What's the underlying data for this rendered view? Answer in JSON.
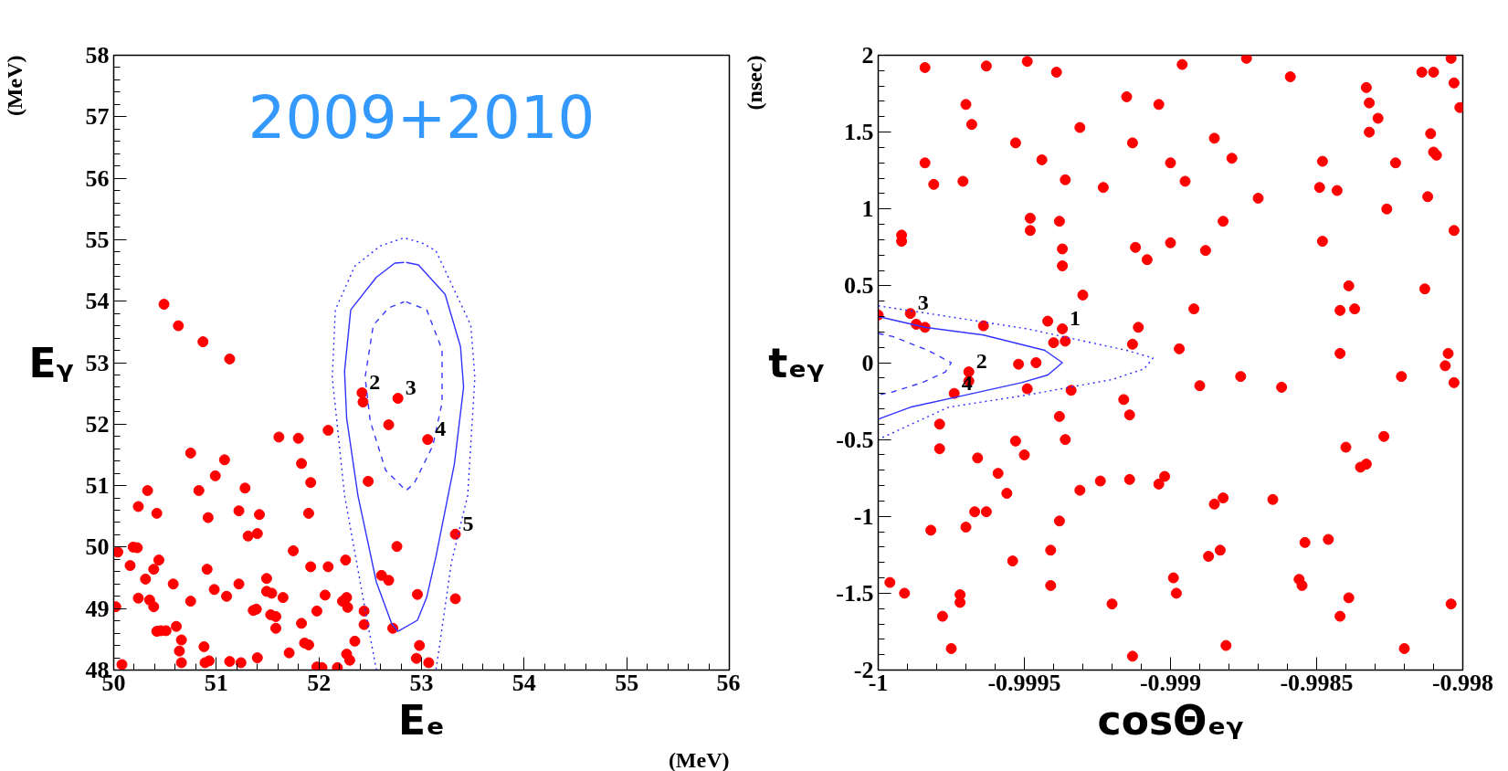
{
  "chart_data": [
    {
      "type": "scatter",
      "title": "2009+2010",
      "xlabel": "Eₑ",
      "ylabel": "Eᵧ",
      "xlim": [
        50,
        56
      ],
      "ylim": [
        48,
        58
      ],
      "xticks": [
        50,
        51,
        52,
        53,
        54,
        55,
        56
      ],
      "yticks": [
        48,
        49,
        50,
        51,
        52,
        53,
        54,
        55,
        56,
        57,
        58
      ],
      "annotations": [
        "(MeV)",
        "(MeV)",
        {
          "text": "2",
          "x": 52.42,
          "y": 52.51
        },
        {
          "text": "3",
          "x": 52.77,
          "y": 52.42
        },
        {
          "text": "4",
          "x": 53.06,
          "y": 51.75
        },
        {
          "text": "5",
          "x": 53.33,
          "y": 50.21
        }
      ],
      "series": [
        {
          "marker": "circle",
          "color": "#ff0000",
          "x": [
            50.49,
            50.63,
            50.87,
            51.13,
            50.75,
            51.08,
            50.99,
            50.83,
            50.33,
            50.24,
            50.42,
            50.92,
            51.28,
            51.22,
            51.42,
            51.31,
            51.4,
            51.61,
            51.8,
            51.83,
            51.92,
            51.9,
            52.09,
            51.75,
            51.92,
            52.09,
            52.26,
            50.04,
            50.19,
            50.23,
            50.16,
            50.31,
            50.39,
            50.44,
            50.24,
            50.35,
            50.39,
            50.02,
            50.58,
            50.75,
            50.91,
            50.98,
            51.1,
            51.22,
            51.49,
            51.49,
            51.54,
            51.65,
            51.36,
            51.39,
            51.53,
            51.58,
            51.58,
            51.83,
            51.98,
            52.06,
            52.23,
            52.27,
            52.28,
            52.44,
            52.44,
            52.35,
            52.27,
            52.3,
            52.18,
            52.03,
            51.98,
            51.86,
            51.9,
            51.71,
            51.4,
            51.24,
            51.13,
            50.93,
            50.89,
            50.88,
            50.66,
            50.64,
            50.66,
            50.61,
            50.42,
            50.46,
            50.51,
            50.08,
            52.42,
            52.43,
            52.77,
            52.68,
            53.06,
            52.48,
            52.76,
            53.33,
            53.33,
            52.96,
            52.61,
            52.68,
            52.72,
            52.98,
            52.95,
            53.07
          ],
          "values": [
            53.95,
            53.6,
            53.34,
            53.06,
            51.53,
            51.42,
            51.16,
            50.92,
            50.92,
            50.66,
            50.55,
            50.48,
            50.96,
            50.59,
            50.53,
            50.18,
            50.22,
            51.79,
            51.77,
            51.36,
            51.05,
            50.55,
            51.9,
            49.94,
            49.68,
            49.68,
            49.79,
            49.92,
            50.0,
            49.99,
            49.7,
            49.48,
            49.64,
            49.79,
            49.17,
            49.14,
            49.03,
            49.03,
            49.4,
            49.12,
            49.64,
            49.31,
            49.2,
            49.4,
            49.49,
            49.28,
            49.25,
            49.18,
            48.97,
            48.99,
            48.9,
            48.87,
            48.68,
            48.76,
            48.96,
            49.22,
            49.12,
            49.18,
            49.02,
            48.96,
            48.74,
            48.47,
            48.26,
            48.16,
            48.04,
            48.04,
            48.05,
            48.44,
            48.41,
            48.28,
            48.2,
            48.12,
            48.14,
            48.15,
            48.12,
            48.38,
            48.49,
            48.31,
            48.12,
            48.71,
            48.63,
            48.64,
            48.64,
            48.09,
            52.51,
            52.36,
            52.42,
            51.99,
            51.75,
            51.07,
            50.01,
            50.21,
            49.16,
            49.23,
            49.54,
            49.46,
            48.68,
            48.4,
            48.19,
            48.12
          ]
        },
        {
          "type": "line",
          "color": "#3333ff",
          "line_style": "solid",
          "x": [
            52.85,
            52.97,
            53.23,
            53.38,
            53.41,
            53.32,
            53.14,
            53.05,
            52.96,
            52.77,
            52.71,
            52.56,
            52.38,
            52.27,
            52.25,
            52.31,
            52.56,
            52.74,
            52.83
          ],
          "values": [
            54.63,
            54.59,
            54.11,
            53.26,
            52.6,
            51.35,
            49.84,
            49.18,
            48.81,
            48.63,
            48.75,
            49.43,
            50.84,
            52.1,
            52.86,
            53.86,
            54.39,
            54.62,
            54.63
          ]
        },
        {
          "type": "line",
          "color": "#3838ff",
          "line_style": "dashed",
          "x": [
            52.85,
            53.05,
            53.2,
            53.2,
            53.11,
            52.93,
            52.85,
            52.65,
            52.5,
            52.45,
            52.53,
            52.68,
            52.83
          ],
          "values": [
            53.99,
            53.86,
            53.21,
            52.35,
            51.65,
            51.04,
            50.92,
            51.25,
            52.05,
            52.76,
            53.61,
            53.89,
            53.99
          ]
        },
        {
          "type": "line",
          "color": "#2e2eff",
          "line_style": "dotted",
          "x": [
            52.56,
            52.44,
            52.25,
            52.13,
            52.16,
            52.35,
            52.6,
            52.83,
            53.0,
            53.14,
            53.48,
            53.52,
            53.45,
            53.29,
            53.17,
            53.14
          ],
          "values": [
            48.0,
            49.08,
            50.84,
            52.76,
            53.86,
            54.57,
            54.9,
            55.03,
            54.95,
            54.82,
            53.61,
            52.76,
            50.84,
            49.74,
            48.33,
            48.0
          ]
        }
      ]
    },
    {
      "type": "scatter",
      "xlabel": "cosΘₑᵧ",
      "ylabel": "tₑᵧ",
      "xlim": [
        -1,
        -0.998
      ],
      "ylim": [
        -2,
        2
      ],
      "xticks": [
        -1,
        -0.9995,
        -0.999,
        -0.9985,
        -0.998
      ],
      "yticks": [
        -2,
        -1.5,
        -1,
        -0.5,
        0,
        0.5,
        1,
        1.5,
        2
      ],
      "annotations": [
        "(nsec)",
        {
          "text": "1",
          "x": -0.99937,
          "y": 0.22
        },
        {
          "text": "2",
          "x": -0.99969,
          "y": -0.06
        },
        {
          "text": "3",
          "x": -0.99989,
          "y": 0.32
        },
        {
          "text": "4",
          "x": -0.99974,
          "y": -0.2
        }
      ],
      "series": [
        {
          "marker": "circle",
          "color": "#ff0000",
          "x": [
            -0.99984,
            -0.99963,
            -0.99949,
            -0.99939,
            -0.9997,
            -0.99968,
            -0.99953,
            -0.99944,
            -0.99931,
            -0.99936,
            -0.99923,
            -0.99984,
            -0.99981,
            -0.99971,
            -0.99992,
            -0.99992,
            -0.99948,
            -0.99948,
            -0.99938,
            -0.99937,
            -0.99937,
            -0.9993,
            -1.0,
            -0.99989,
            -0.99987,
            -0.99984,
            -0.99964,
            -0.99942,
            -0.99937,
            -0.9994,
            -0.99936,
            -0.99952,
            -0.99946,
            -0.99969,
            -0.99969,
            -0.99974,
            -0.99949,
            -0.99934,
            -0.99938,
            -0.99936,
            -0.99979,
            -0.99979,
            -0.99966,
            -0.99953,
            -0.9995,
            -0.99959,
            -0.99956,
            -0.99931,
            -0.99924,
            -0.99967,
            -0.99963,
            -0.9997,
            -0.99982,
            -0.99938,
            -0.99941,
            -0.99954,
            -0.99941,
            -0.99996,
            -0.99991,
            -0.99972,
            -0.99972,
            -0.99978,
            -0.99975,
            -0.9992,
            -0.99915,
            -0.99896,
            -0.99874,
            -0.99859,
            -0.99904,
            -0.99913,
            -0.99885,
            -0.999,
            -0.99879,
            -0.99895,
            -0.9987,
            -0.99882,
            -0.99912,
            -0.99908,
            -0.999,
            -0.99888,
            -0.99892,
            -0.99911,
            -0.99913,
            -0.99897,
            -0.9989,
            -0.99876,
            -0.99862,
            -0.99916,
            -0.99914,
            -0.99914,
            -0.99904,
            -0.99902,
            -0.99885,
            -0.99882,
            -0.99865,
            -0.99854,
            -0.99846,
            -0.99887,
            -0.99883,
            -0.99899,
            -0.99898,
            -0.99856,
            -0.99855,
            -0.99839,
            -0.99842,
            -0.99881,
            -0.99913,
            -0.9982,
            -0.99804,
            -0.99833,
            -0.99832,
            -0.99829,
            -0.99832,
            -0.99848,
            -0.99849,
            -0.99843,
            -0.99823,
            -0.99826,
            -0.99812,
            -0.99814,
            -0.9981,
            -0.99804,
            -0.99803,
            -0.99801,
            -0.99811,
            -0.9981,
            -0.99809,
            -0.99803,
            -0.99848,
            -0.99839,
            -0.99842,
            -0.99837,
            -0.99813,
            -0.99842,
            -0.99821,
            -0.99805,
            -0.99806,
            -0.99803,
            -0.99827,
            -0.9984,
            -0.99835,
            -0.99833
          ],
          "values": [
            1.92,
            1.93,
            1.96,
            1.89,
            1.68,
            1.55,
            1.43,
            1.32,
            1.53,
            1.19,
            1.14,
            1.3,
            1.16,
            1.18,
            0.83,
            0.79,
            0.94,
            0.86,
            0.92,
            0.74,
            0.63,
            0.44,
            0.31,
            0.32,
            0.25,
            0.23,
            0.24,
            0.27,
            0.22,
            0.13,
            0.14,
            -0.01,
            0.0,
            -0.06,
            -0.12,
            -0.2,
            -0.17,
            -0.18,
            -0.35,
            -0.5,
            -0.4,
            -0.56,
            -0.62,
            -0.51,
            -0.6,
            -0.72,
            -0.85,
            -0.83,
            -0.77,
            -0.97,
            -0.97,
            -1.07,
            -1.09,
            -1.03,
            -1.22,
            -1.29,
            -1.45,
            -1.43,
            -1.5,
            -1.51,
            -1.56,
            -1.65,
            -1.86,
            -1.57,
            1.73,
            1.94,
            1.98,
            1.86,
            1.68,
            1.43,
            1.46,
            1.3,
            1.33,
            1.18,
            1.07,
            0.92,
            0.75,
            0.67,
            0.78,
            0.73,
            0.35,
            0.23,
            0.12,
            0.09,
            -0.15,
            -0.09,
            -0.16,
            -0.24,
            -0.34,
            -0.76,
            -0.79,
            -0.74,
            -0.92,
            -0.88,
            -0.89,
            -1.17,
            -1.15,
            -1.26,
            -1.22,
            -1.4,
            -1.5,
            -1.41,
            -1.45,
            -1.53,
            -1.65,
            -1.84,
            -1.91,
            -1.86,
            -1.57,
            1.79,
            1.69,
            1.59,
            1.5,
            1.31,
            1.14,
            1.12,
            1.3,
            1.0,
            1.08,
            1.89,
            1.89,
            1.98,
            1.82,
            1.66,
            1.49,
            1.37,
            1.35,
            0.86,
            0.79,
            0.5,
            0.34,
            0.35,
            0.48,
            0.06,
            -0.09,
            0.06,
            -0.02,
            -0.13,
            -0.48,
            -0.55,
            -0.68,
            -0.66
          ]
        },
        {
          "type": "line",
          "color": "#3333ff",
          "line_style": "solid",
          "x": [
            -1.0,
            -0.99984,
            -0.99964,
            -0.99943,
            -0.99937,
            -0.99942,
            -0.99951,
            -0.9997,
            -0.99989,
            -0.99999,
            -1.0
          ],
          "values": [
            0.3,
            0.23,
            0.18,
            0.08,
            0.0,
            -0.08,
            -0.13,
            -0.21,
            -0.29,
            -0.36,
            -0.37
          ]
        },
        {
          "type": "line",
          "color": "#3838ff",
          "line_style": "dashed",
          "x": [
            -1.0,
            -0.99995,
            -0.99983,
            -0.99975,
            -0.99977,
            -0.99985,
            -0.99995,
            -1.0
          ],
          "values": [
            0.19,
            0.17,
            0.08,
            0.0,
            -0.06,
            -0.13,
            -0.19,
            -0.21
          ]
        },
        {
          "type": "line",
          "color": "#2e2eff",
          "line_style": "dotted",
          "x": [
            -1.0,
            -0.99976,
            -0.99949,
            -0.99915,
            -0.99906,
            -0.99909,
            -0.9992,
            -0.99949,
            -0.99976,
            -1.0
          ],
          "values": [
            0.37,
            0.3,
            0.22,
            0.08,
            0.03,
            -0.04,
            -0.11,
            -0.21,
            -0.29,
            -0.5
          ]
        }
      ]
    }
  ]
}
